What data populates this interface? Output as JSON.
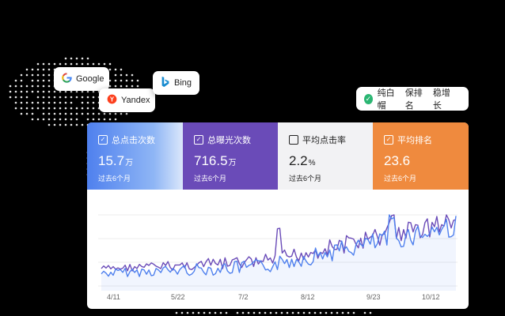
{
  "badges": {
    "google": "Google",
    "yandex": "Yandex",
    "bing": "Bing"
  },
  "promise": {
    "items": [
      "纯白帽",
      "保排名",
      "稳增长"
    ]
  },
  "kpis": [
    {
      "label": "总点击次数",
      "value": "15.7",
      "unit": "万",
      "sub": "过去6个月",
      "checked": true
    },
    {
      "label": "总曝光次数",
      "value": "716.5",
      "unit": "万",
      "sub": "过去6个月",
      "checked": true
    },
    {
      "label": "平均点击率",
      "value": "2.2",
      "unit": "%",
      "sub": "过去6个月",
      "checked": false
    },
    {
      "label": "平均排名",
      "value": "23.6",
      "unit": "",
      "sub": "过去6个月",
      "checked": true
    }
  ],
  "chart_data": {
    "type": "line",
    "x_ticks": [
      "4/11",
      "5/22",
      "7/2",
      "8/12",
      "9/23",
      "10/12"
    ],
    "series": [
      {
        "color": "#6a4bb8"
      },
      {
        "color": "#4f80ee"
      }
    ]
  },
  "colors": {
    "clicks": "#4f80ee",
    "impressions": "#6a4bb8",
    "ctr": "#f2f2f4",
    "position": "#ef8a3e",
    "check_green": "#2bb673"
  }
}
